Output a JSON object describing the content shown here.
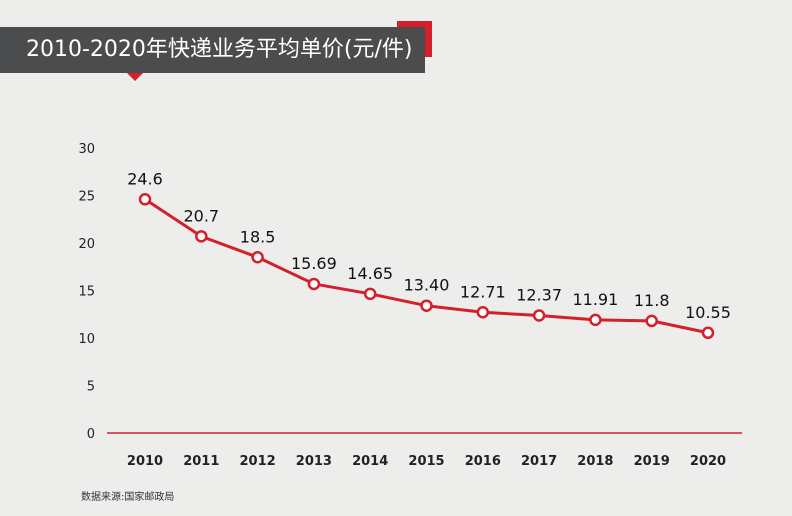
{
  "chart_data": {
    "type": "line",
    "title": "2010-2020年快递业务平均单价(元/件)",
    "categories": [
      "2010",
      "2011",
      "2012",
      "2013",
      "2014",
      "2015",
      "2016",
      "2017",
      "2018",
      "2019",
      "2020"
    ],
    "values": [
      24.6,
      20.7,
      18.5,
      15.69,
      14.65,
      13.4,
      12.71,
      12.37,
      11.91,
      11.8,
      10.55
    ],
    "labels": [
      "24.6",
      "20.7",
      "18.5",
      "15.69",
      "14.65",
      "13.40",
      "12.71",
      "12.37",
      "11.91",
      "11.8",
      "10.55"
    ],
    "ylim": [
      0,
      30
    ],
    "yticks": [
      "0",
      "5",
      "10",
      "15",
      "20",
      "25",
      "30"
    ],
    "grid": false,
    "colors": {
      "line": "#d3202a",
      "marker_fill": "#ffffff",
      "title_bg": "#4b4c4e",
      "background": "#ededec"
    }
  },
  "source": "数据来源:国家邮政局"
}
